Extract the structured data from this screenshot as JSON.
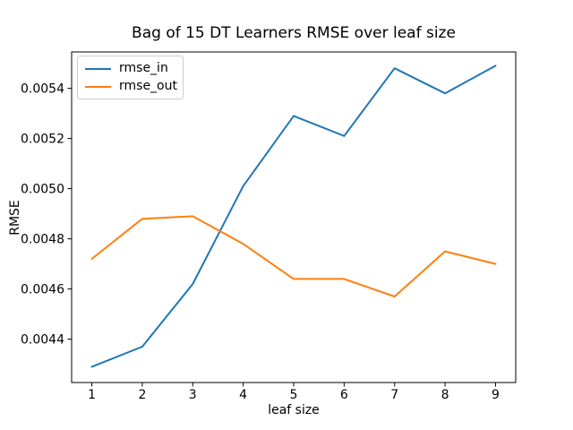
{
  "chart_data": {
    "type": "line",
    "title": "Bag of 15 DT Learners RMSE over leaf size",
    "xlabel": "leaf size",
    "ylabel": "RMSE",
    "x": [
      1,
      2,
      3,
      4,
      5,
      6,
      7,
      8,
      9
    ],
    "series": [
      {
        "name": "rmse_in",
        "color": "#1f77b4",
        "values": [
          0.00429,
          0.00437,
          0.00462,
          0.00501,
          0.00529,
          0.00521,
          0.00548,
          0.00538,
          0.00549
        ]
      },
      {
        "name": "rmse_out",
        "color": "#ff7f0e",
        "values": [
          0.00472,
          0.00488,
          0.00489,
          0.00478,
          0.00464,
          0.00464,
          0.00457,
          0.00475,
          0.0047
        ]
      }
    ],
    "xticks": [
      "1",
      "2",
      "3",
      "4",
      "5",
      "6",
      "7",
      "8",
      "9"
    ],
    "xtick_values": [
      1,
      2,
      3,
      4,
      5,
      6,
      7,
      8,
      9
    ],
    "ytick_labels": [
      "0.0044",
      "0.0046",
      "0.0048",
      "0.0050",
      "0.0052",
      "0.0054"
    ],
    "ytick_values": [
      0.0044,
      0.0046,
      0.0048,
      0.005,
      0.0052,
      0.0054
    ],
    "xlim": [
      0.6,
      9.4
    ],
    "ylim": [
      0.004227,
      0.005545
    ],
    "grid": false,
    "legend": {
      "position": "upper left"
    },
    "axis_color": "#000000",
    "background": "#ffffff"
  }
}
